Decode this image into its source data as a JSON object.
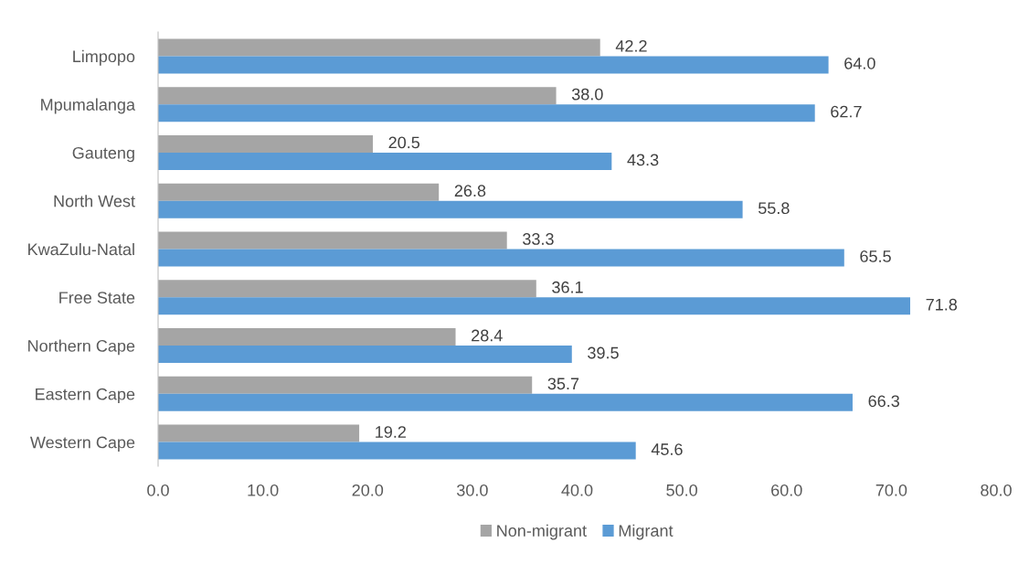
{
  "chart_data": {
    "type": "bar",
    "orientation": "horizontal",
    "categories": [
      "Limpopo",
      "Mpumalanga",
      "Gauteng",
      "North West",
      "KwaZulu-Natal",
      "Free State",
      "Northern Cape",
      "Eastern Cape",
      "Western Cape"
    ],
    "series": [
      {
        "name": "Non-migrant",
        "color": "#a5a5a5",
        "values": [
          42.2,
          38.0,
          20.5,
          26.8,
          33.3,
          36.1,
          28.4,
          35.7,
          19.2
        ],
        "value_labels": [
          "42.2",
          "38.0",
          "20.5",
          "26.8",
          "33.3",
          "36.1",
          "28.4",
          "35.7",
          "19.2"
        ]
      },
      {
        "name": "Migrant",
        "color": "#5b9bd5",
        "values": [
          64.0,
          62.7,
          43.3,
          55.8,
          65.5,
          71.8,
          39.5,
          66.3,
          45.6
        ],
        "value_labels": [
          "64.0",
          "62.7",
          "43.3",
          "55.8",
          "65.5",
          "71.8",
          "39.5",
          "66.3",
          "45.6"
        ]
      }
    ],
    "xlim": [
      0,
      80
    ],
    "xticks": [
      {
        "value": 0,
        "label": "0.0"
      },
      {
        "value": 10,
        "label": "10.0"
      },
      {
        "value": 20,
        "label": "20.0"
      },
      {
        "value": 30,
        "label": "30.0"
      },
      {
        "value": 40,
        "label": "40.0"
      },
      {
        "value": 50,
        "label": "50.0"
      },
      {
        "value": 60,
        "label": "60.0"
      },
      {
        "value": 70,
        "label": "70.0"
      },
      {
        "value": 80,
        "label": "80.0"
      }
    ],
    "grid": false,
    "legend": "bottom"
  }
}
